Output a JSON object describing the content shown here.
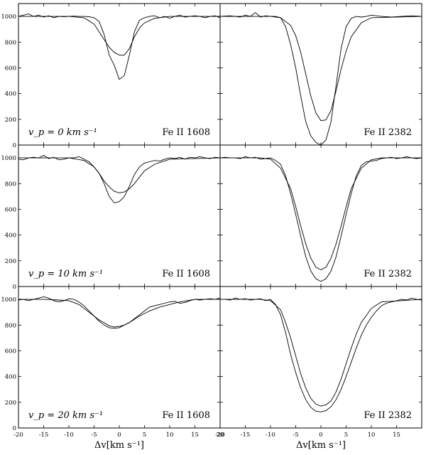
{
  "chart_data": {
    "type": "line",
    "grid": false,
    "xlabel": "Δv[km s⁻¹]",
    "xlim": [
      -20,
      20
    ],
    "ylim": [
      0,
      1100
    ],
    "xticks": [
      -20,
      -15,
      -10,
      -5,
      0,
      5,
      10,
      15,
      20
    ],
    "xticks_last": [
      -20,
      -15,
      -10,
      -5,
      0,
      5,
      10,
      15
    ],
    "yticks": [
      0,
      200,
      400,
      600,
      800,
      1000
    ],
    "panels": [
      {
        "id": "r0c0",
        "vp_label": "v_p = 0 km s⁻¹",
        "ion_label": "Fe II 1608",
        "smooth": {
          "x": [
            -20,
            -10,
            -7,
            -5,
            -4,
            -3,
            -2,
            -1,
            0,
            1,
            2,
            3,
            4,
            5,
            7,
            10,
            20
          ],
          "y": [
            1000,
            1000,
            990,
            940,
            880,
            820,
            760,
            720,
            700,
            700,
            750,
            840,
            910,
            950,
            985,
            1000,
            1000
          ]
        },
        "noisy": {
          "x": [
            -20,
            -19,
            -18,
            -17,
            -16,
            -15,
            -14,
            -13,
            -12,
            -11,
            -10,
            -9,
            -8,
            -7,
            -6,
            -5,
            -4,
            -3,
            -2,
            -1,
            0,
            1,
            2,
            3,
            4,
            5,
            6,
            7,
            8,
            9,
            10,
            11,
            12,
            13,
            14,
            15,
            16,
            17,
            18,
            19,
            20
          ],
          "y": [
            1000,
            1010,
            1020,
            1000,
            1010,
            995,
            1005,
            990,
            1000,
            998,
            1000,
            1002,
            1000,
            1000,
            998,
            990,
            960,
            860,
            700,
            620,
            510,
            540,
            700,
            880,
            970,
            990,
            1000,
            1005,
            990,
            1000,
            985,
            1000,
            1010,
            995,
            1000,
            1005,
            1000,
            990,
            1000,
            1005,
            990
          ]
        }
      },
      {
        "id": "r0c1",
        "vp_label": "",
        "ion_label": "Fe II 2382",
        "smooth": {
          "x": [
            -20,
            -10,
            -8,
            -6,
            -5,
            -4,
            -3,
            -2,
            -1,
            0,
            1,
            2,
            3,
            4,
            5,
            6,
            8,
            10,
            20
          ],
          "y": [
            1000,
            1000,
            990,
            930,
            850,
            720,
            550,
            380,
            250,
            190,
            195,
            270,
            420,
            590,
            730,
            840,
            950,
            990,
            1000
          ]
        },
        "noisy": {
          "x": [
            -20,
            -18,
            -16,
            -15,
            -14,
            -13,
            -12,
            -11,
            -10,
            -9,
            -8,
            -7,
            -6,
            -5,
            -4,
            -3,
            -2,
            -1,
            0,
            1,
            2,
            3,
            4,
            5,
            6,
            7,
            8,
            9,
            10,
            12,
            14,
            16,
            18,
            20
          ],
          "y": [
            1000,
            1005,
            995,
            1010,
            1000,
            1030,
            995,
            1005,
            1000,
            1000,
            990,
            920,
            780,
            600,
            380,
            180,
            70,
            20,
            0,
            40,
            180,
            460,
            750,
            920,
            985,
            1000,
            995,
            1000,
            1010,
            1000,
            995,
            1000,
            1005,
            1000
          ]
        }
      },
      {
        "id": "r1c0",
        "vp_label": "v_p = 10 km s⁻¹",
        "ion_label": "Fe II 1608",
        "smooth": {
          "x": [
            -20,
            -10,
            -7,
            -5,
            -4,
            -3,
            -2,
            -1,
            0,
            1,
            2,
            3,
            4,
            5,
            7,
            10,
            20
          ],
          "y": [
            1000,
            1000,
            980,
            930,
            880,
            820,
            775,
            740,
            728,
            735,
            760,
            800,
            850,
            900,
            950,
            990,
            1000
          ]
        },
        "noisy": {
          "x": [
            -20,
            -19,
            -18,
            -17,
            -16,
            -15,
            -14,
            -13,
            -12,
            -11,
            -10,
            -9,
            -8,
            -7,
            -6,
            -5,
            -4,
            -3,
            -2,
            -1,
            0,
            1,
            2,
            3,
            4,
            5,
            6,
            7,
            8,
            9,
            10,
            11,
            12,
            13,
            14,
            15,
            16,
            17,
            18,
            19,
            20
          ],
          "y": [
            990,
            985,
            1000,
            1005,
            1000,
            1020,
            995,
            1005,
            985,
            990,
            1000,
            1000,
            1010,
            990,
            970,
            930,
            880,
            800,
            700,
            650,
            660,
            700,
            780,
            870,
            930,
            960,
            970,
            980,
            975,
            990,
            1000,
            995,
            1005,
            990,
            1005,
            1000,
            1010,
            1000,
            995,
            1005,
            1000
          ]
        }
      },
      {
        "id": "r1c1",
        "vp_label": "",
        "ion_label": "Fe II 2382",
        "smooth": {
          "x": [
            -20,
            -12,
            -10,
            -8,
            -6,
            -5,
            -4,
            -3,
            -2,
            -1,
            0,
            1,
            2,
            3,
            4,
            5,
            6,
            8,
            10,
            12,
            20
          ],
          "y": [
            1000,
            1000,
            990,
            920,
            760,
            620,
            470,
            330,
            220,
            150,
            130,
            150,
            220,
            330,
            470,
            620,
            760,
            920,
            985,
            1000,
            1000
          ]
        },
        "noisy": {
          "x": [
            -20,
            -19,
            -18,
            -17,
            -16,
            -15,
            -14,
            -13,
            -12,
            -11,
            -10,
            -9,
            -8,
            -7,
            -6,
            -5,
            -4,
            -3,
            -2,
            -1,
            0,
            1,
            2,
            3,
            4,
            5,
            6,
            7,
            8,
            9,
            10,
            11,
            12,
            13,
            14,
            15,
            16,
            17,
            18,
            19,
            20
          ],
          "y": [
            1000,
            1005,
            1000,
            1000,
            995,
            1010,
            1000,
            1005,
            990,
            995,
            1000,
            980,
            950,
            860,
            720,
            560,
            390,
            230,
            120,
            60,
            40,
            60,
            120,
            230,
            390,
            560,
            720,
            860,
            940,
            970,
            975,
            980,
            995,
            1000,
            1005,
            995,
            1000,
            1010,
            1000,
            995,
            1000
          ]
        }
      },
      {
        "id": "r2c0",
        "vp_label": "v_p = 20 km s⁻¹",
        "ion_label": "Fe II 1608",
        "smooth": {
          "x": [
            -20,
            -15,
            -12,
            -10,
            -8,
            -6,
            -4,
            -2,
            -1,
            0,
            1,
            2,
            4,
            6,
            8,
            10,
            12,
            15,
            18,
            20
          ],
          "y": [
            1000,
            1000,
            995,
            990,
            960,
            900,
            840,
            795,
            785,
            790,
            800,
            820,
            870,
            910,
            940,
            960,
            980,
            1000,
            1000,
            1000
          ]
        },
        "noisy": {
          "x": [
            -20,
            -19,
            -18,
            -17,
            -16,
            -15,
            -14,
            -13,
            -12,
            -11,
            -10,
            -9,
            -8,
            -7,
            -6,
            -5,
            -4,
            -3,
            -2,
            -1,
            0,
            1,
            2,
            3,
            4,
            5,
            6,
            7,
            8,
            9,
            10,
            11,
            12,
            13,
            14,
            15,
            16,
            17,
            18,
            19,
            20
          ],
          "y": [
            995,
            1000,
            990,
            1000,
            1010,
            1020,
            1010,
            990,
            980,
            990,
            1005,
            1000,
            980,
            950,
            910,
            870,
            830,
            800,
            780,
            775,
            780,
            800,
            820,
            850,
            880,
            910,
            940,
            950,
            960,
            970,
            980,
            985,
            970,
            975,
            990,
            1000,
            995,
            1000,
            1005,
            1000,
            1010
          ]
        }
      },
      {
        "id": "r2c1",
        "vp_label": "",
        "ion_label": "Fe II 2382",
        "smooth": {
          "x": [
            -20,
            -12,
            -10,
            -8,
            -7,
            -6,
            -5,
            -4,
            -3,
            -2,
            -1,
            0,
            1,
            2,
            3,
            4,
            5,
            6,
            7,
            8,
            10,
            12,
            20
          ],
          "y": [
            1000,
            1000,
            990,
            920,
            820,
            700,
            560,
            420,
            310,
            230,
            185,
            170,
            180,
            210,
            280,
            380,
            500,
            620,
            730,
            820,
            930,
            980,
            1000
          ]
        },
        "noisy": {
          "x": [
            -20,
            -19,
            -18,
            -17,
            -16,
            -15,
            -14,
            -13,
            -12,
            -11,
            -10,
            -9,
            -8,
            -7,
            -6,
            -5,
            -4,
            -3,
            -2,
            -1,
            0,
            1,
            2,
            3,
            4,
            5,
            6,
            7,
            8,
            9,
            10,
            11,
            12,
            13,
            14,
            15,
            16,
            17,
            18,
            19,
            20
          ],
          "y": [
            1000,
            1000,
            995,
            1010,
            1000,
            1005,
            995,
            1000,
            1005,
            990,
            1000,
            960,
            880,
            740,
            570,
            430,
            310,
            220,
            160,
            130,
            125,
            135,
            165,
            220,
            300,
            400,
            510,
            620,
            720,
            800,
            860,
            910,
            950,
            970,
            980,
            990,
            1000,
            995,
            1010,
            1000,
            995
          ]
        }
      }
    ]
  }
}
